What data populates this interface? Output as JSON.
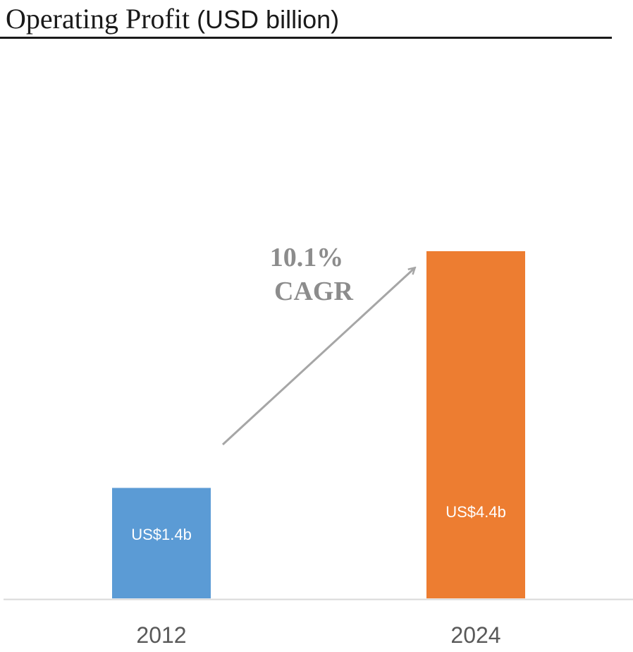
{
  "chart_data": {
    "type": "bar",
    "title": "Operating Profit",
    "title_unit": "(USD billion)",
    "categories": [
      "2012",
      "2024"
    ],
    "values": [
      1.4,
      4.4
    ],
    "data_labels": [
      "US$1.4b",
      "US$4.4b"
    ],
    "colors": [
      "#5b9bd5",
      "#ed7d31"
    ],
    "annotation": {
      "line1": "10.1%",
      "line2": "CAGR",
      "color": "#a6a6a6"
    },
    "axis_color": "#d9d9d9",
    "ylim": [
      0,
      4.4
    ],
    "grid": false,
    "legend": "none"
  }
}
